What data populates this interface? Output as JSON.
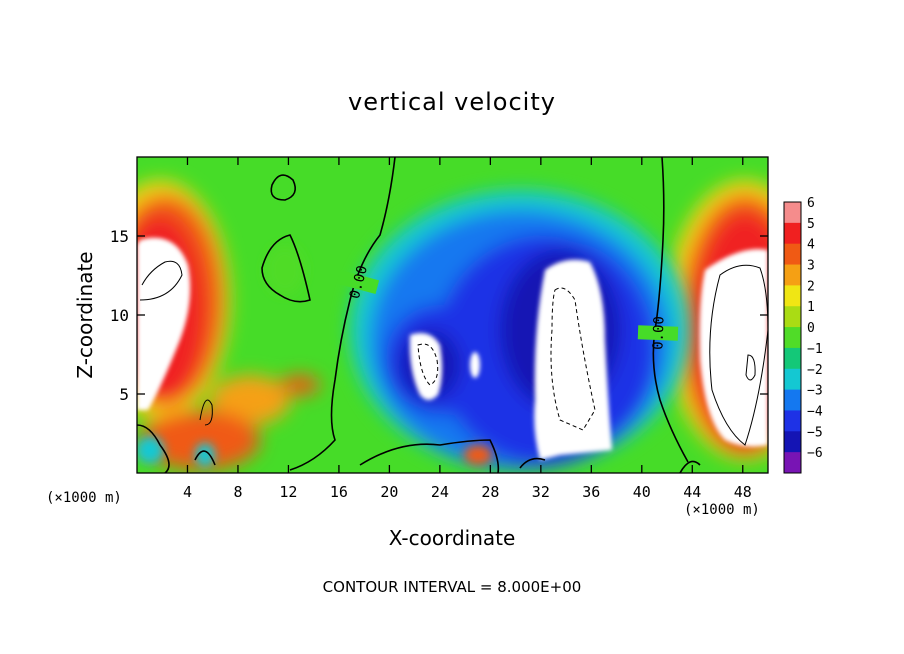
{
  "chart_data": {
    "type": "heatmap",
    "title": "vertical velocity",
    "xlabel": "X-coordinate",
    "ylabel": "Z-coordinate",
    "x_units_label": "(×1000 m)",
    "x_ticks": [
      "4",
      "8",
      "12",
      "16",
      "20",
      "24",
      "28",
      "32",
      "36",
      "40",
      "44",
      "48"
    ],
    "x_tick_values": [
      4,
      8,
      12,
      16,
      20,
      24,
      28,
      32,
      36,
      40,
      44,
      48
    ],
    "y_ticks": [
      "5",
      "10",
      "15"
    ],
    "y_tick_values": [
      5,
      10,
      15
    ],
    "xlim": [
      0,
      50
    ],
    "ylim": [
      0,
      20
    ],
    "colorbar": {
      "labels": [
        "6",
        "5",
        "4",
        "3",
        "2",
        "1",
        "0",
        "−1",
        "−2",
        "−3",
        "−4",
        "−5",
        "−6"
      ],
      "values": [
        6,
        5,
        4,
        3,
        2,
        1,
        0,
        -1,
        -2,
        -3,
        -4,
        -5,
        -6
      ],
      "colors": [
        "#f58c8c",
        "#f02020",
        "#f05a14",
        "#f5a014",
        "#f0e614",
        "#aadc14",
        "#50dc28",
        "#14c878",
        "#14c8d2",
        "#1478f0",
        "#1e32e6",
        "#1414b4",
        "#7814b4"
      ]
    },
    "contour_labels": [
      "0.00",
      "0.00"
    ],
    "footnote": "CONTOUR INTERVAL = 8.000E+00"
  }
}
